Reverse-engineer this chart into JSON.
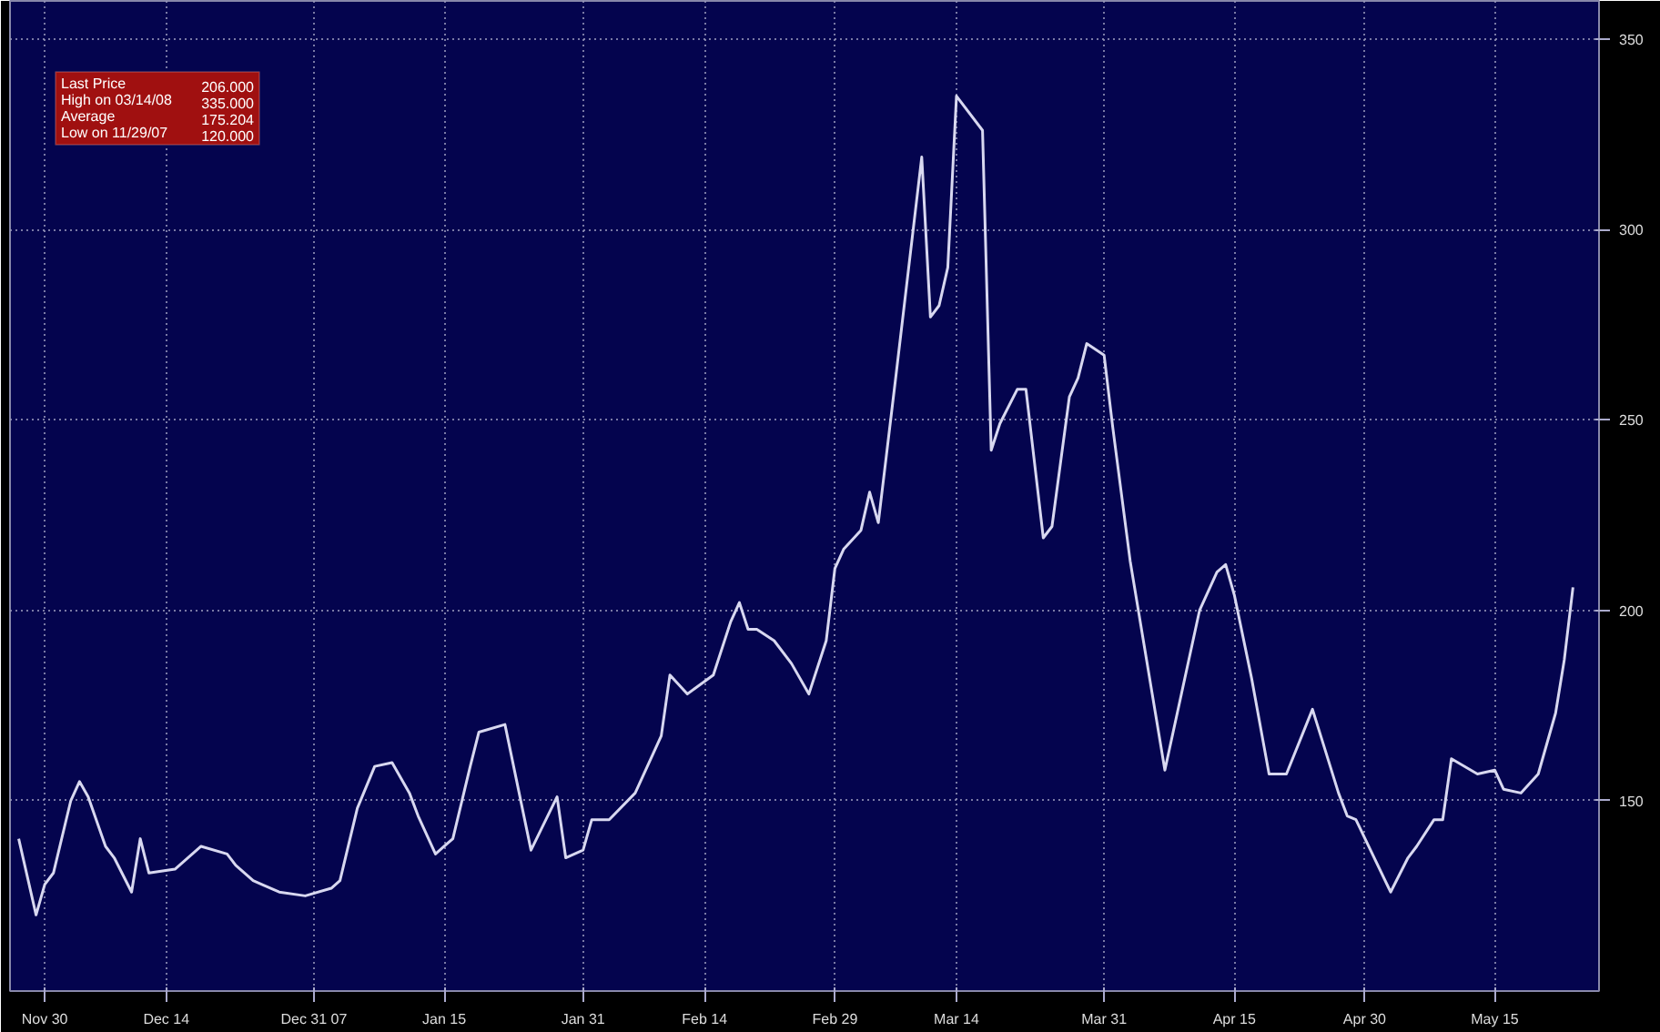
{
  "chart_data": {
    "type": "line",
    "x": [
      "2007-11-27",
      "2007-11-29",
      "2007-11-30",
      "2007-12-01",
      "2007-12-03",
      "2007-12-04",
      "2007-12-05",
      "2007-12-07",
      "2007-12-08",
      "2007-12-10",
      "2007-12-11",
      "2007-12-12",
      "2007-12-15",
      "2007-12-18",
      "2007-12-21",
      "2007-12-22",
      "2007-12-24",
      "2007-12-25",
      "2007-12-27",
      "2007-12-30",
      "2008-01-02",
      "2008-01-03",
      "2008-01-05",
      "2008-01-07",
      "2008-01-09",
      "2008-01-11",
      "2008-01-12",
      "2008-01-14",
      "2008-01-15",
      "2008-01-16",
      "2008-01-18",
      "2008-01-19",
      "2008-01-22",
      "2008-01-25",
      "2008-01-28",
      "2008-01-29",
      "2008-01-31",
      "2008-02-01",
      "2008-02-03",
      "2008-02-06",
      "2008-02-09",
      "2008-02-10",
      "2008-02-12",
      "2008-02-15",
      "2008-02-17",
      "2008-02-18",
      "2008-02-19",
      "2008-02-20",
      "2008-02-22",
      "2008-02-24",
      "2008-02-26",
      "2008-02-28",
      "2008-02-29",
      "2008-03-01",
      "2008-03-03",
      "2008-03-04",
      "2008-03-05",
      "2008-03-07",
      "2008-03-10",
      "2008-03-11",
      "2008-03-12",
      "2008-03-13",
      "2008-03-14",
      "2008-03-17",
      "2008-03-18",
      "2008-03-19",
      "2008-03-21",
      "2008-03-22",
      "2008-03-24",
      "2008-03-25",
      "2008-03-27",
      "2008-03-28",
      "2008-03-29",
      "2008-03-31",
      "2008-04-01",
      "2008-04-03",
      "2008-04-07",
      "2008-04-11",
      "2008-04-13",
      "2008-04-14",
      "2008-04-15",
      "2008-04-17",
      "2008-04-19",
      "2008-04-21",
      "2008-04-24",
      "2008-04-27",
      "2008-04-28",
      "2008-04-29",
      "2008-05-03",
      "2008-05-05",
      "2008-05-06",
      "2008-05-08",
      "2008-05-09",
      "2008-05-10",
      "2008-05-13",
      "2008-05-15",
      "2008-05-16",
      "2008-05-18",
      "2008-05-20",
      "2008-05-22",
      "2008-05-23",
      "2008-05-24"
    ],
    "series": [
      {
        "color": "#d8d8f0",
        "values": [
          140,
          120,
          128,
          131,
          150,
          155,
          151,
          138,
          135,
          126,
          140,
          131,
          132,
          138,
          136,
          133,
          129,
          128,
          126,
          125,
          127,
          129,
          148,
          159,
          160,
          152,
          146,
          136,
          138,
          140,
          159,
          168,
          170,
          137,
          151,
          135,
          137,
          145,
          145,
          152,
          167,
          183,
          178,
          183,
          197,
          202,
          195,
          195,
          192,
          186,
          178,
          192,
          211,
          216,
          221,
          231,
          223,
          261,
          319,
          277,
          280,
          290,
          335,
          326,
          242,
          249,
          258,
          258,
          219,
          222,
          256,
          261,
          270,
          267,
          248,
          213,
          158,
          200,
          210,
          212,
          204,
          182,
          157,
          157,
          174,
          152,
          146,
          145,
          126,
          135,
          138,
          145,
          145,
          161,
          157,
          158,
          153,
          152,
          157,
          173,
          187,
          206
        ]
      }
    ],
    "xlim": [
      "2007-11-26",
      "2008-05-27"
    ],
    "xticks": [
      {
        "value": "2007-11-30",
        "label": "Nov 30"
      },
      {
        "value": "2007-12-14",
        "label": "Dec 14"
      },
      {
        "value": "2007-12-31",
        "label": "Dec 31 07"
      },
      {
        "value": "2008-01-15",
        "label": "Jan 15"
      },
      {
        "value": "2008-01-31",
        "label": "Jan 31"
      },
      {
        "value": "2008-02-14",
        "label": "Feb 14"
      },
      {
        "value": "2008-02-29",
        "label": "Feb 29"
      },
      {
        "value": "2008-03-14",
        "label": "Mar 14"
      },
      {
        "value": "2008-03-31",
        "label": "Mar 31"
      },
      {
        "value": "2008-04-15",
        "label": "Apr 15"
      },
      {
        "value": "2008-04-30",
        "label": "Apr 30"
      },
      {
        "value": "2008-05-15",
        "label": "May 15"
      }
    ],
    "ylim": [
      100,
      360
    ],
    "yticks": [
      150,
      200,
      250,
      300,
      350
    ],
    "grid": true,
    "line_style": "solid",
    "annotations": [
      "Last Price",
      "206.000",
      "High on  03/14/08",
      "335.000",
      "Average",
      "175.204",
      "Low on  11/29/07",
      "120.000"
    ]
  }
}
